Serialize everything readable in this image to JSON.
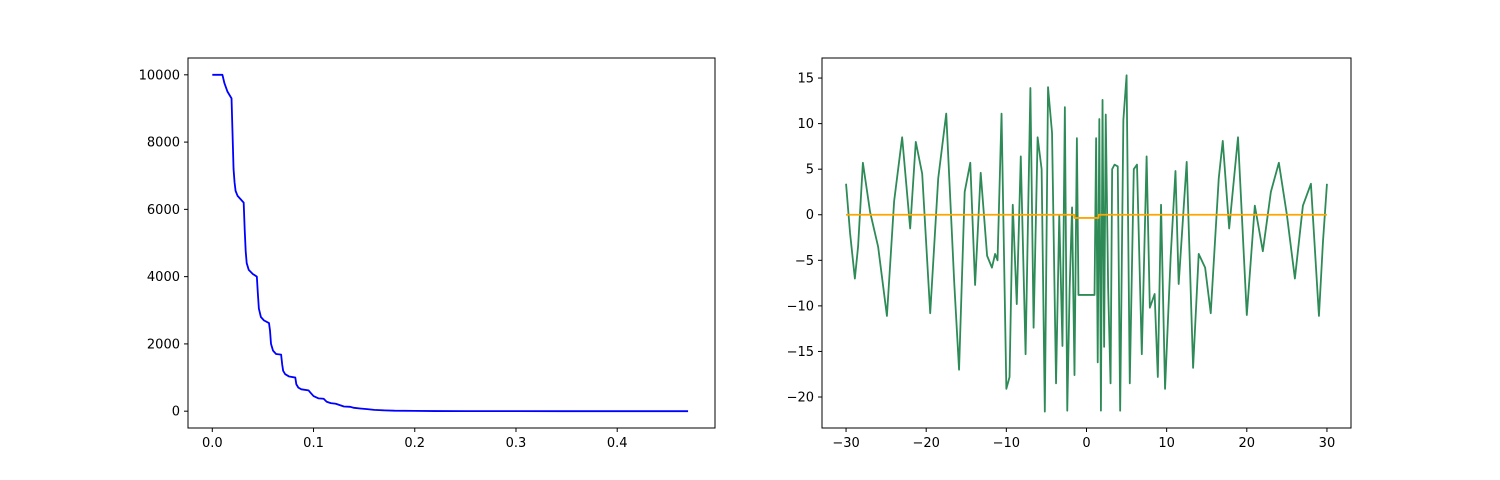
{
  "chart_data": [
    {
      "type": "line",
      "title": "",
      "xlabel": "",
      "ylabel": "",
      "xlim": [
        -0.024,
        0.4966
      ],
      "ylim": [
        -500,
        10500
      ],
      "xticks": [
        0.0,
        0.1,
        0.2,
        0.3,
        0.4
      ],
      "xtick_labels": [
        "0.0",
        "0.1",
        "0.2",
        "0.3",
        "0.4"
      ],
      "yticks": [
        0,
        2000,
        4000,
        6000,
        8000,
        10000
      ],
      "ytick_labels": [
        "0",
        "2000",
        "4000",
        "6000",
        "8000",
        "10000"
      ],
      "grid": false,
      "series": [
        {
          "color": "#0000ff",
          "x": [
            0.0,
            0.01,
            0.012,
            0.015,
            0.019,
            0.021,
            0.022,
            0.023,
            0.025,
            0.028,
            0.031,
            0.032,
            0.033,
            0.034,
            0.036,
            0.04,
            0.044,
            0.045,
            0.046,
            0.048,
            0.051,
            0.056,
            0.057,
            0.058,
            0.06,
            0.063,
            0.068,
            0.069,
            0.07,
            0.072,
            0.076,
            0.082,
            0.083,
            0.085,
            0.088,
            0.095,
            0.097,
            0.1,
            0.105,
            0.11,
            0.113,
            0.117,
            0.122,
            0.126,
            0.13,
            0.136,
            0.14,
            0.146,
            0.153,
            0.16,
            0.17,
            0.18,
            0.2,
            0.22,
            0.25,
            0.3,
            0.35,
            0.4,
            0.45,
            0.47
          ],
          "values": [
            10000,
            10000,
            9750,
            9500,
            9300,
            7200,
            6800,
            6550,
            6400,
            6300,
            6200,
            5400,
            4750,
            4400,
            4200,
            4080,
            4000,
            3500,
            3050,
            2800,
            2700,
            2620,
            2400,
            2000,
            1800,
            1700,
            1680,
            1400,
            1200,
            1100,
            1030,
            1000,
            800,
            700,
            650,
            620,
            550,
            450,
            380,
            370,
            280,
            240,
            220,
            180,
            140,
            130,
            100,
            80,
            60,
            40,
            25,
            15,
            8,
            4,
            2,
            1,
            0,
            0,
            0,
            0
          ]
        }
      ]
    },
    {
      "type": "line",
      "title": "",
      "xlabel": "",
      "ylabel": "",
      "xlim": [
        -33.0,
        33.0
      ],
      "ylim": [
        -23.4,
        17.2
      ],
      "xticks": [
        -30,
        -20,
        -10,
        0,
        10,
        20,
        30
      ],
      "xtick_labels": [
        "−30",
        "−20",
        "−10",
        "0",
        "10",
        "20",
        "30"
      ],
      "yticks": [
        -20,
        -15,
        -10,
        -5,
        0,
        5,
        10,
        15
      ],
      "ytick_labels": [
        "−20",
        "−15",
        "−10",
        "−5",
        "0",
        "5",
        "10",
        "15"
      ],
      "grid": false,
      "series": [
        {
          "color": "#2e8b57",
          "x": [
            -30.0,
            -29.5,
            -28.9,
            -28.5,
            -27.9,
            -27.0,
            -26.0,
            -24.9,
            -24.0,
            -23.0,
            -22.0,
            -21.3,
            -20.5,
            -19.5,
            -18.5,
            -17.5,
            -16.5,
            -15.9,
            -15.2,
            -14.5,
            -13.9,
            -13.2,
            -12.4,
            -11.8,
            -11.4,
            -11.1,
            -10.6,
            -10.0,
            -9.6,
            -9.2,
            -8.7,
            -8.2,
            -7.6,
            -7.0,
            -6.6,
            -6.1,
            -5.6,
            -5.2,
            -4.8,
            -4.3,
            -3.8,
            -3.4,
            -3.0,
            -2.7,
            -2.4,
            -2.1,
            -1.8,
            -1.5,
            -1.2,
            -1.0,
            1.0,
            1.2,
            1.4,
            1.6,
            1.8,
            2.0,
            2.2,
            2.4,
            2.7,
            3.0,
            3.2,
            3.5,
            3.9,
            4.2,
            4.6,
            5.0,
            5.4,
            5.9,
            6.3,
            6.9,
            7.5,
            7.9,
            8.5,
            8.9,
            9.3,
            9.8,
            10.5,
            11.1,
            11.5,
            12.5,
            13.3,
            14.0,
            14.8,
            15.5,
            16.5,
            17.0,
            17.8,
            18.9,
            20.0,
            21.0,
            22.0,
            23.0,
            24.0,
            25.0,
            26.0,
            27.0,
            28.0,
            29.0,
            29.5,
            30.0
          ],
          "values": [
            3.4,
            -2.0,
            -7.0,
            -3.5,
            5.7,
            0.3,
            -3.5,
            -11.1,
            1.5,
            8.5,
            -1.5,
            8.0,
            4.5,
            -10.8,
            4.0,
            11.1,
            -7.5,
            -17.0,
            2.5,
            5.7,
            -7.7,
            4.6,
            -4.5,
            -5.8,
            -4.3,
            -5.0,
            11.1,
            -19.1,
            -17.8,
            1.1,
            -9.8,
            6.4,
            -15.3,
            13.9,
            -12.4,
            8.5,
            5.0,
            -21.6,
            14.0,
            9.0,
            -18.5,
            0.0,
            -14.4,
            11.8,
            -21.5,
            -8.0,
            0.8,
            -17.6,
            8.4,
            -8.8,
            -8.8,
            8.4,
            -16.2,
            10.5,
            -21.5,
            12.6,
            -14.5,
            11.0,
            -8.0,
            -18.5,
            5.0,
            5.5,
            5.3,
            -21.5,
            10.4,
            15.3,
            -18.5,
            5.0,
            5.5,
            -15.3,
            6.4,
            -10.2,
            -8.7,
            -17.8,
            1.1,
            -19.1,
            -4.6,
            4.8,
            -7.6,
            5.8,
            -16.8,
            -4.3,
            -5.8,
            -10.8,
            4.0,
            8.1,
            -1.5,
            8.5,
            -11.0,
            1.0,
            -4.0,
            2.5,
            5.7,
            0.0,
            -7.0,
            1.0,
            3.4,
            -11.1,
            -3.0,
            3.4
          ]
        },
        {
          "color": "#ffa500",
          "x": [
            -30.0,
            -1.5,
            -1.5,
            1.5,
            1.5,
            30.0
          ],
          "values": [
            0.0,
            0.0,
            -0.35,
            -0.35,
            0.0,
            0.0
          ]
        }
      ]
    }
  ]
}
